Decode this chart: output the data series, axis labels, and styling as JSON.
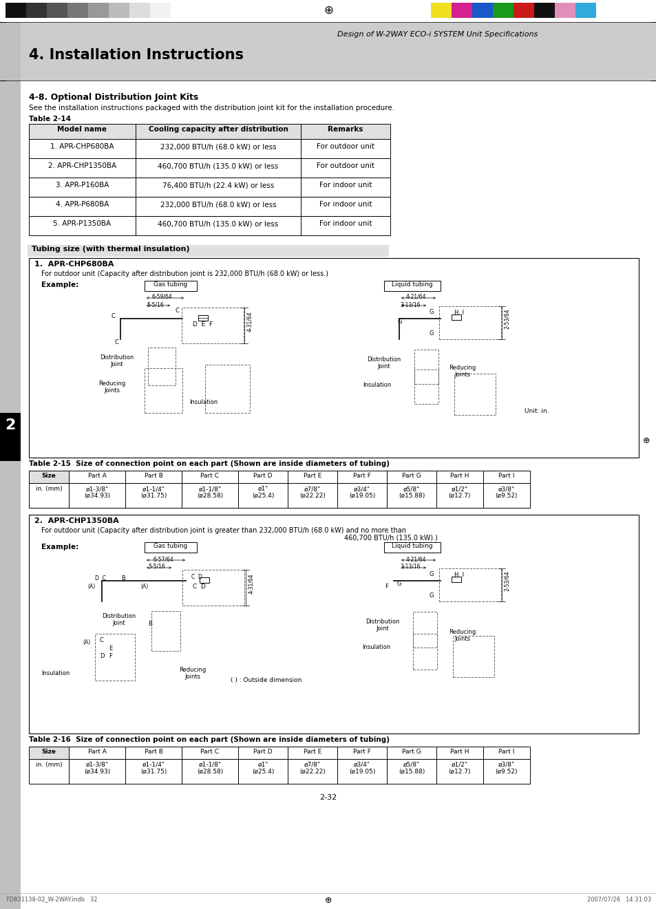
{
  "page_title": "Design of W-2WAY ECO-i SYSTEM Unit Specifications",
  "section_title": "4. Installation Instructions",
  "section_header": "4-8. Optional Distribution Joint Kits",
  "section_intro": "See the installation instructions packaged with the distribution joint kit for the installation procedure.",
  "table14_label": "Table 2-14",
  "table14_headers": [
    "Model name",
    "Cooling capacity after distribution",
    "Remarks"
  ],
  "table14_rows": [
    [
      "1. APR-CHP680BA",
      "232,000 BTU/h (68.0 kW) or less",
      "For outdoor unit"
    ],
    [
      "2. APR-CHP1350BA",
      "460,700 BTU/h (135.0 kW) or less",
      "For outdoor unit"
    ],
    [
      "3. APR-P160BA",
      "76,400 BTU/h (22.4 kW) or less",
      "For indoor unit"
    ],
    [
      "4. APR-P680BA",
      "232,000 BTU/h (68.0 kW) or less",
      "For indoor unit"
    ],
    [
      "5. APR-P1350BA",
      "460,700 BTU/h (135.0 kW) or less",
      "For indoor unit"
    ]
  ],
  "tubing_label": "Tubing size (with thermal insulation)",
  "section1_title": "1.  APR-CHP680BA",
  "section1_desc": "For outdoor unit (Capacity after distribution joint is 232,000 BTU/h (68.0 kW) or less.)",
  "table15_title": "Table 2-15  Size of connection point on each part (Shown are inside diameters of tubing)",
  "table15_headers": [
    "Size",
    "Part A",
    "Part B",
    "Part C",
    "Part D",
    "Part E",
    "Part F",
    "Part G",
    "Part H",
    "Part I"
  ],
  "table15_rows": [
    [
      "in. (mm)",
      "ø1-3/8\"\n(ø34.93)",
      "ø1-1/4\"\n(ø31.75)",
      "ø1-1/8\"\n(ø28.58)",
      "ø1\"\n(ø25.4)",
      "ø7/8\"\n(ø22.22)",
      "ø3/4\"\n(ø19.05)",
      "ø5/8\"\n(ø15.88)",
      "ø1/2\"\n(ø12.7)",
      "ø3/8\"\n(ø9.52)"
    ]
  ],
  "section2_title": "2.  APR-CHP1350BA",
  "section2_desc1": "For outdoor unit (Capacity after distribution joint is greater than 232,000 BTU/h (68.0 kW) and no more than",
  "section2_desc2": "460,700 BTU/h (135.0 kW).)",
  "table16_title": "Table 2-16  Size of connection point on each part (Shown are inside diameters of tubing)",
  "table16_rows": [
    [
      "in. (mm)",
      "ø1-3/8\"\n(ø34.93)",
      "ø1-1/4\"\n(ø31.75)",
      "ø1-1/8\"\n(ø28.58)",
      "ø1\"\n(ø25.4)",
      "ø7/8\"\n(ø22.22)",
      "ø3/4\"\n(ø19.05)",
      "ø5/8\"\n(ø15.88)",
      "ø1/2\"\n(ø12.7)",
      "ø3/8\"\n(ø9.52)"
    ]
  ],
  "page_number": "2-32",
  "footer_left": "7D831138-02_W-2WAY.indb   32",
  "footer_right": "2007/07/26   14:31:03",
  "colors_left": [
    "#111111",
    "#333333",
    "#555555",
    "#777777",
    "#999999",
    "#bbbbbb",
    "#dddddd",
    "#f2f2f2"
  ],
  "colors_right": [
    "#f0e020",
    "#d42090",
    "#1858c8",
    "#1a9a1a",
    "#cc1a1a",
    "#111111",
    "#e090b8",
    "#30aad8"
  ],
  "header_bg": "#cccccc",
  "table_header_bg": "#e0e0e0",
  "tubing_bg": "#e0e0e0",
  "section_border": "#000000",
  "white": "#ffffff",
  "black": "#000000",
  "gray": "#888888",
  "dashed_color": "#666666"
}
